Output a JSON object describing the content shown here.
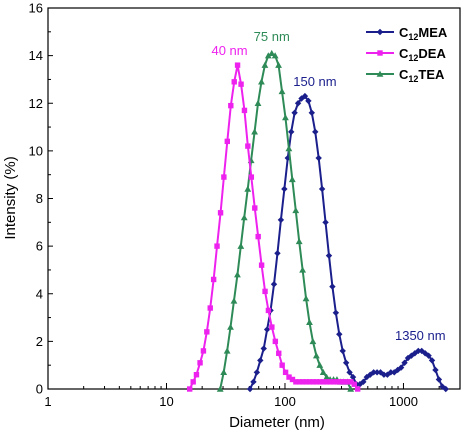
{
  "chart_data": {
    "type": "line",
    "title": "",
    "xlabel": "Diameter (nm)",
    "ylabel": "Intensity (%)",
    "xscale": "log",
    "xlim": [
      1,
      3000
    ],
    "ylim": [
      0,
      16
    ],
    "xticks": [
      1,
      10,
      100,
      1000
    ],
    "xtick_labels": [
      "1",
      "10",
      "100",
      "1000"
    ],
    "yticks": [
      0,
      2,
      4,
      6,
      8,
      10,
      12,
      14,
      16
    ],
    "ytick_labels": [
      "0",
      "2",
      "4",
      "6",
      "8",
      "10",
      "12",
      "14",
      "16"
    ],
    "grid": false,
    "legend_position": "top-right",
    "series": [
      {
        "name": "C12MEA",
        "legend_main": "C",
        "legend_sub": "12",
        "legend_suffix": "MEA",
        "color": "#1b1f8c",
        "marker": "diamond",
        "points": [
          [
            50.7,
            0.0
          ],
          [
            54.2,
            0.3
          ],
          [
            57.9,
            0.7
          ],
          [
            61.9,
            1.2
          ],
          [
            66.2,
            1.7
          ],
          [
            70.7,
            2.5
          ],
          [
            75.6,
            3.3
          ],
          [
            80.8,
            4.4
          ],
          [
            86.4,
            5.7
          ],
          [
            92.4,
            7.1
          ],
          [
            98.8,
            8.4
          ],
          [
            105.6,
            9.7
          ],
          [
            112.9,
            10.8
          ],
          [
            120.6,
            11.6
          ],
          [
            129.0,
            12.0
          ],
          [
            137.9,
            12.2
          ],
          [
            147.4,
            12.3
          ],
          [
            157.6,
            12.1
          ],
          [
            168.4,
            11.6
          ],
          [
            180.1,
            10.8
          ],
          [
            192.5,
            9.7
          ],
          [
            205.8,
            8.4
          ],
          [
            220.0,
            7.0
          ],
          [
            235.2,
            5.6
          ],
          [
            251.4,
            4.3
          ],
          [
            268.8,
            3.2
          ],
          [
            287.3,
            2.3
          ],
          [
            307.1,
            1.6
          ],
          [
            328.3,
            1.1
          ],
          [
            351.0,
            0.7
          ],
          [
            375.3,
            0.5
          ],
          [
            401.2,
            0.2
          ],
          [
            428.9,
            0.2
          ],
          [
            458.5,
            0.3
          ],
          [
            490.1,
            0.5
          ],
          [
            523.9,
            0.6
          ],
          [
            560.1,
            0.7
          ],
          [
            598.8,
            0.7
          ],
          [
            640.1,
            0.7
          ],
          [
            684.3,
            0.6
          ],
          [
            731.5,
            0.6
          ],
          [
            782.0,
            0.7
          ],
          [
            836.0,
            0.7
          ],
          [
            893.7,
            0.8
          ],
          [
            955.4,
            0.9
          ],
          [
            1021.3,
            1.1
          ],
          [
            1091.8,
            1.3
          ],
          [
            1167.2,
            1.4
          ],
          [
            1247.8,
            1.5
          ],
          [
            1333.9,
            1.6
          ],
          [
            1426.0,
            1.6
          ],
          [
            1524.4,
            1.5
          ],
          [
            1629.6,
            1.4
          ],
          [
            1742.1,
            1.2
          ],
          [
            1862.4,
            0.8
          ],
          [
            1990.9,
            0.4
          ],
          [
            2128.4,
            0.1
          ],
          [
            2275.3,
            0.0
          ]
        ]
      },
      {
        "name": "C12DEA",
        "legend_main": "C",
        "legend_sub": "12",
        "legend_suffix": "DEA",
        "color": "#ee22ee",
        "marker": "square",
        "points": [
          [
            15.7,
            0.0
          ],
          [
            16.8,
            0.3
          ],
          [
            17.9,
            0.6
          ],
          [
            19.2,
            1.1
          ],
          [
            20.5,
            1.6
          ],
          [
            21.9,
            2.4
          ],
          [
            23.4,
            3.4
          ],
          [
            25.0,
            4.6
          ],
          [
            26.7,
            6.0
          ],
          [
            28.6,
            7.4
          ],
          [
            30.5,
            8.9
          ],
          [
            32.6,
            10.4
          ],
          [
            34.9,
            11.9
          ],
          [
            37.3,
            12.9
          ],
          [
            39.8,
            13.6
          ],
          [
            42.6,
            12.8
          ],
          [
            45.5,
            11.7
          ],
          [
            48.6,
            10.2
          ],
          [
            52.0,
            8.9
          ],
          [
            55.6,
            7.6
          ],
          [
            59.4,
            6.4
          ],
          [
            63.5,
            5.2
          ],
          [
            67.9,
            4.1
          ],
          [
            72.5,
            3.3
          ],
          [
            77.5,
            2.6
          ],
          [
            82.9,
            2.0
          ],
          [
            88.6,
            1.5
          ],
          [
            94.7,
            1.0
          ],
          [
            101.2,
            0.7
          ],
          [
            108.2,
            0.5
          ],
          [
            115.7,
            0.4
          ],
          [
            123.6,
            0.3
          ],
          [
            132.2,
            0.3
          ],
          [
            141.3,
            0.3
          ],
          [
            151.0,
            0.3
          ],
          [
            161.4,
            0.3
          ],
          [
            172.6,
            0.3
          ],
          [
            184.5,
            0.3
          ],
          [
            197.2,
            0.3
          ],
          [
            210.8,
            0.3
          ],
          [
            225.4,
            0.3
          ],
          [
            240.9,
            0.3
          ],
          [
            257.5,
            0.3
          ],
          [
            275.3,
            0.3
          ],
          [
            294.3,
            0.3
          ],
          [
            314.6,
            0.3
          ],
          [
            336.3,
            0.3
          ],
          [
            359.5,
            0.3
          ],
          [
            384.3,
            0.2
          ],
          [
            410.8,
            0.0
          ]
        ]
      },
      {
        "name": "C12TEA",
        "legend_main": "C",
        "legend_sub": "12",
        "legend_suffix": "TEA",
        "color": "#2e8b57",
        "marker": "triangle",
        "points": [
          [
            28.4,
            0.0
          ],
          [
            30.4,
            0.7
          ],
          [
            32.5,
            1.6
          ],
          [
            34.7,
            2.6
          ],
          [
            37.1,
            3.7
          ],
          [
            39.7,
            4.8
          ],
          [
            42.4,
            6.0
          ],
          [
            45.3,
            7.2
          ],
          [
            48.5,
            8.4
          ],
          [
            51.8,
            9.6
          ],
          [
            55.4,
            10.8
          ],
          [
            59.2,
            12.0
          ],
          [
            63.3,
            12.9
          ],
          [
            67.7,
            13.6
          ],
          [
            72.3,
            14.0
          ],
          [
            77.3,
            14.1
          ],
          [
            82.6,
            14.0
          ],
          [
            88.3,
            13.6
          ],
          [
            94.4,
            12.5
          ],
          [
            100.9,
            11.4
          ],
          [
            107.9,
            10.1
          ],
          [
            115.3,
            8.8
          ],
          [
            123.3,
            7.5
          ],
          [
            131.8,
            6.2
          ],
          [
            140.9,
            5.0
          ],
          [
            150.6,
            3.8
          ],
          [
            161.0,
            2.8
          ],
          [
            172.1,
            2.0
          ],
          [
            184.0,
            1.4
          ],
          [
            196.7,
            1.0
          ],
          [
            210.3,
            0.7
          ],
          [
            224.8,
            0.5
          ],
          [
            240.3,
            0.4
          ],
          [
            256.9,
            0.4
          ],
          [
            274.6,
            0.4
          ],
          [
            293.6,
            0.3
          ],
          [
            313.8,
            0.3
          ],
          [
            335.5,
            0.3
          ],
          [
            358.6,
            0.0
          ]
        ]
      }
    ],
    "annotations": [
      {
        "text": "40 nm",
        "x": 39.8,
        "y": 13.6,
        "color": "#ee22ee"
      },
      {
        "text": "75 nm",
        "x": 77.3,
        "y": 14.1,
        "color": "#2e8b57"
      },
      {
        "text": "150 nm",
        "x": 147.4,
        "y": 12.3,
        "color": "#1b1f8c"
      },
      {
        "text": "1350 nm",
        "x": 1333.9,
        "y": 1.6,
        "color": "#1b1f8c"
      }
    ]
  }
}
